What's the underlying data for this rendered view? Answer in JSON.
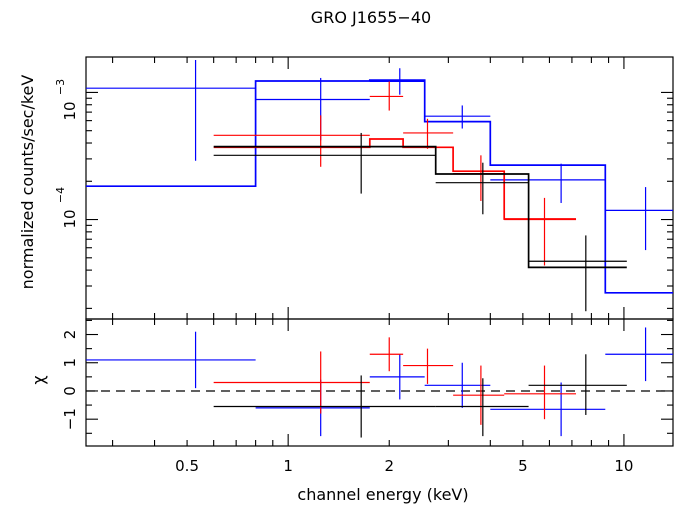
{
  "chart_data": [
    {
      "type": "scatter",
      "title": "GRO J1655−40",
      "ylabel": "normalized counts/sec/keV",
      "xscale": "log",
      "yscale": "log",
      "xlim": [
        0.25,
        14
      ],
      "ylim": [
        1.65e-05,
        0.0019
      ],
      "y_tick_labels": {
        "upper": {
          "base": "10",
          "exp": "−3",
          "value": 0.001
        },
        "lower": {
          "base": "10",
          "exp": "−4",
          "value": 0.0001
        }
      },
      "series": [
        {
          "color": "#0000ff",
          "points": [
            {
              "x": 0.53,
              "xlo": 0.25,
              "xhi": 0.8,
              "y": 0.00108,
              "ylo": 0.00029,
              "yhi": 0.0018
            },
            {
              "x": 1.25,
              "xlo": 0.8,
              "xhi": 1.75,
              "y": 0.00088,
              "ylo": 0.00042,
              "yhi": 0.0013
            },
            {
              "x": 2.15,
              "xlo": 1.75,
              "xhi": 2.55,
              "y": 0.00122,
              "ylo": 0.00096,
              "yhi": 0.00155
            },
            {
              "x": 3.3,
              "xlo": 2.55,
              "xhi": 4.0,
              "y": 0.00065,
              "ylo": 0.00052,
              "yhi": 0.00079
            },
            {
              "x": 6.5,
              "xlo": 4.0,
              "xhi": 8.8,
              "y": 0.000205,
              "ylo": 0.000135,
              "yhi": 0.000275
            },
            {
              "x": 11.6,
              "xlo": 8.8,
              "xhi": 14.0,
              "y": 0.000118,
              "ylo": 5.75e-05,
              "yhi": 0.00018
            }
          ],
          "model": [
            {
              "xlo": 0.25,
              "xhi": 0.8,
              "y": 0.000183
            },
            {
              "xlo": 0.8,
              "xhi": 1.75,
              "y": 0.00123
            },
            {
              "xlo": 1.75,
              "xhi": 2.55,
              "y": 0.00125
            },
            {
              "xlo": 2.55,
              "xhi": 4.0,
              "y": 0.00059
            },
            {
              "xlo": 4.0,
              "xhi": 8.8,
              "y": 0.000268
            },
            {
              "xlo": 8.8,
              "xhi": 14.0,
              "y": 2.65e-05
            }
          ],
          "residuals": [
            {
              "x": 0.53,
              "xlo": 0.25,
              "xhi": 0.8,
              "y": 1.1,
              "ylo": 0.1,
              "yhi": 2.1
            },
            {
              "x": 1.25,
              "xlo": 0.8,
              "xhi": 1.75,
              "y": -0.6,
              "ylo": -1.6,
              "yhi": 0.4
            },
            {
              "x": 2.15,
              "xlo": 1.75,
              "xhi": 2.55,
              "y": 0.5,
              "ylo": -0.3,
              "yhi": 1.3
            },
            {
              "x": 3.3,
              "xlo": 2.55,
              "xhi": 4.0,
              "y": 0.2,
              "ylo": -0.6,
              "yhi": 1.0
            },
            {
              "x": 6.5,
              "xlo": 4.0,
              "xhi": 8.8,
              "y": -0.65,
              "ylo": -1.6,
              "yhi": 0.3
            },
            {
              "x": 11.6,
              "xlo": 8.8,
              "xhi": 14.0,
              "y": 1.3,
              "ylo": 0.35,
              "yhi": 2.25
            }
          ]
        },
        {
          "color": "#ff0000",
          "points": [
            {
              "x": 1.25,
              "xlo": 0.6,
              "xhi": 1.75,
              "y": 0.00046,
              "ylo": 0.00026,
              "yhi": 0.00066
            },
            {
              "x": 2.0,
              "xlo": 1.75,
              "xhi": 2.2,
              "y": 0.00093,
              "ylo": 0.00072,
              "yhi": 0.00122
            },
            {
              "x": 2.6,
              "xlo": 2.2,
              "xhi": 3.1,
              "y": 0.00048,
              "ylo": 0.00036,
              "yhi": 0.00062
            },
            {
              "x": 3.75,
              "xlo": 3.1,
              "xhi": 4.4,
              "y": 0.00023,
              "ylo": 0.00014,
              "yhi": 0.00032
            },
            {
              "x": 5.8,
              "xlo": 4.4,
              "xhi": 7.2,
              "y": 0.0001,
              "ylo": 4.35e-05,
              "yhi": 0.000148
            }
          ],
          "model": [
            {
              "xlo": 0.6,
              "xhi": 1.75,
              "y": 0.00037
            },
            {
              "xlo": 1.75,
              "xhi": 2.2,
              "y": 0.00043
            },
            {
              "xlo": 2.2,
              "xhi": 3.1,
              "y": 0.00037
            },
            {
              "xlo": 3.1,
              "xhi": 4.4,
              "y": 0.00024
            },
            {
              "xlo": 4.4,
              "xhi": 7.2,
              "y": 0.000101
            }
          ],
          "residuals": [
            {
              "x": 1.25,
              "xlo": 0.6,
              "xhi": 1.75,
              "y": 0.3,
              "ylo": -0.8,
              "yhi": 1.4
            },
            {
              "x": 2.0,
              "xlo": 1.75,
              "xhi": 2.2,
              "y": 1.3,
              "ylo": 0.7,
              "yhi": 1.9
            },
            {
              "x": 2.6,
              "xlo": 2.2,
              "xhi": 3.1,
              "y": 0.9,
              "ylo": 0.25,
              "yhi": 1.5
            },
            {
              "x": 3.75,
              "xlo": 3.1,
              "xhi": 4.4,
              "y": -0.15,
              "ylo": -1.2,
              "yhi": 0.9
            },
            {
              "x": 5.8,
              "xlo": 4.4,
              "xhi": 7.2,
              "y": -0.1,
              "ylo": -1.0,
              "yhi": 0.9
            }
          ]
        },
        {
          "color": "#000000",
          "points": [
            {
              "x": 1.65,
              "xlo": 0.6,
              "xhi": 2.75,
              "y": 0.00032,
              "ylo": 0.00016,
              "yhi": 0.00048
            },
            {
              "x": 3.8,
              "xlo": 2.75,
              "xhi": 5.2,
              "y": 0.000195,
              "ylo": 0.00011,
              "yhi": 0.00028
            },
            {
              "x": 7.7,
              "xlo": 5.2,
              "xhi": 10.2,
              "y": 4.7e-05,
              "ylo": 1.9e-05,
              "yhi": 7.5e-05
            }
          ],
          "model": [
            {
              "xlo": 0.6,
              "xhi": 2.75,
              "y": 0.000375
            },
            {
              "xlo": 2.75,
              "xhi": 5.2,
              "y": 0.000228
            },
            {
              "xlo": 5.2,
              "xhi": 10.2,
              "y": 4.2e-05
            }
          ],
          "residuals": [
            {
              "x": 1.65,
              "xlo": 0.6,
              "xhi": 2.75,
              "y": -0.55,
              "ylo": -1.65,
              "yhi": 0.55
            },
            {
              "x": 3.8,
              "xlo": 2.75,
              "xhi": 5.2,
              "y": -0.55,
              "ylo": -1.6,
              "yhi": 0.45
            },
            {
              "x": 7.7,
              "xlo": 5.2,
              "xhi": 10.2,
              "y": 0.2,
              "ylo": -0.85,
              "yhi": 1.3
            }
          ]
        }
      ]
    },
    {
      "type": "scatter",
      "ylabel": "χ",
      "xlabel": "channel energy (keV)",
      "xscale": "log",
      "xlim": [
        0.25,
        14
      ],
      "ylim": [
        -1.95,
        2.55
      ],
      "yticks": [
        -1,
        0,
        1,
        2
      ],
      "ytick_labels": [
        "−1",
        "0",
        "1",
        "2"
      ],
      "xticks": [
        0.5,
        1,
        2,
        5,
        10
      ],
      "xtick_labels": [
        "0.5",
        "1",
        "2",
        "5",
        "10"
      ],
      "zero_line": "dashed"
    }
  ]
}
